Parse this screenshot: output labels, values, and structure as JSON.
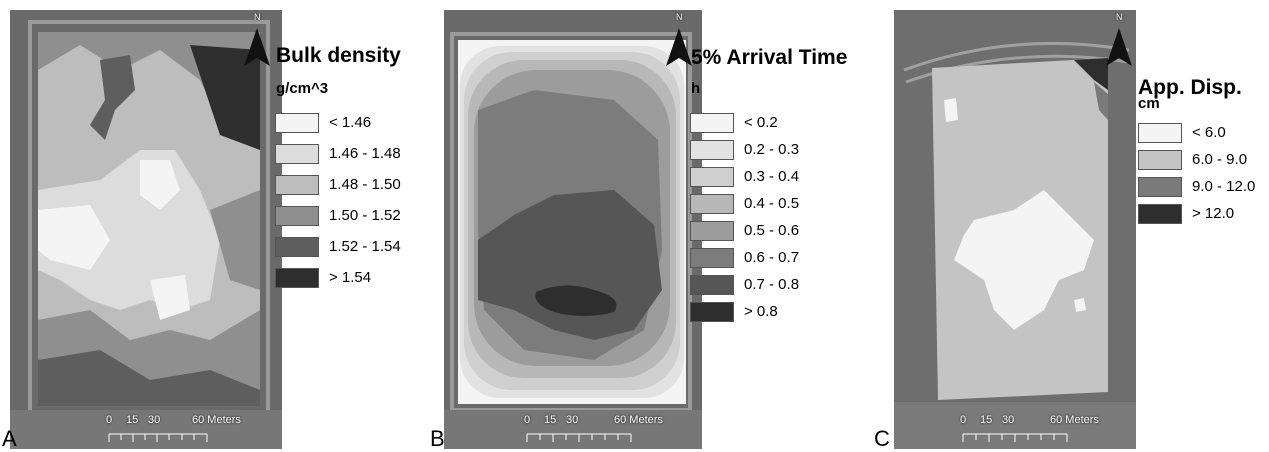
{
  "panels": [
    {
      "letter": "A",
      "title": "Bulk density",
      "unit": "g/cm^3",
      "classes": [
        {
          "label": "< 1.46",
          "color": "#f4f4f4"
        },
        {
          "label": "1.46 - 1.48",
          "color": "#dcdcdc"
        },
        {
          "label": "1.48 - 1.50",
          "color": "#bdbdbd"
        },
        {
          "label": "1.50 - 1.52",
          "color": "#8f8f8f"
        },
        {
          "label": "1.52 - 1.54",
          "color": "#5e5e5e"
        },
        {
          "label": "> 1.54",
          "color": "#2e2e2e"
        }
      ],
      "north_label": "N",
      "scale": {
        "labels": [
          "0",
          "15",
          "30",
          "60 Meters"
        ]
      }
    },
    {
      "letter": "B",
      "title": "5% Arrival Time",
      "unit": "h",
      "classes": [
        {
          "label": "< 0.2",
          "color": "#f4f4f4"
        },
        {
          "label": "0.2 - 0.3",
          "color": "#e2e2e2"
        },
        {
          "label": "0.3 - 0.4",
          "color": "#cfcfcf"
        },
        {
          "label": "0.4 - 0.5",
          "color": "#b8b8b8"
        },
        {
          "label": "0.5 - 0.6",
          "color": "#9c9c9c"
        },
        {
          "label": "0.6 - 0.7",
          "color": "#7c7c7c"
        },
        {
          "label": "0.7 - 0.8",
          "color": "#565656"
        },
        {
          "label": "> 0.8",
          "color": "#2e2e2e"
        }
      ],
      "north_label": "N",
      "scale": {
        "labels": [
          "0",
          "15",
          "30",
          "60 Meters"
        ]
      }
    },
    {
      "letter": "C",
      "title": "App. Disp.",
      "unit": "cm",
      "classes": [
        {
          "label": "< 6.0",
          "color": "#f4f4f4"
        },
        {
          "label": "6.0 - 9.0",
          "color": "#c4c4c4"
        },
        {
          "label": "9.0 - 12.0",
          "color": "#7a7a7a"
        },
        {
          "label": "> 12.0",
          "color": "#2e2e2e"
        }
      ],
      "north_label": "N",
      "scale": {
        "labels": [
          "0",
          "15",
          "30",
          "60 Meters"
        ]
      }
    }
  ]
}
